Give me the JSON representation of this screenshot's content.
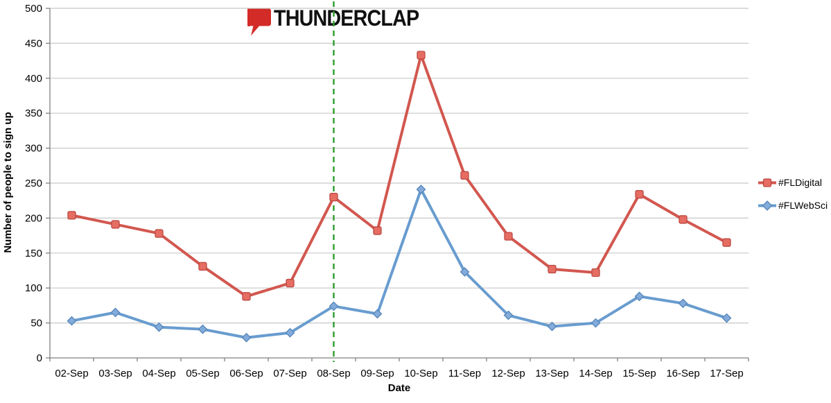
{
  "logo": {
    "text": "THUNDERCLAP",
    "icon_color": "#D32B27",
    "text_color": "#111111"
  },
  "chart_data": {
    "type": "line",
    "xlabel": "Date",
    "ylabel": "Number of people to sign up",
    "ylim": [
      0,
      500
    ],
    "ytick_step": 50,
    "grid": "horizontal",
    "legend_position": "right",
    "categories": [
      "02-Sep",
      "03-Sep",
      "04-Sep",
      "05-Sep",
      "06-Sep",
      "07-Sep",
      "08-Sep",
      "09-Sep",
      "10-Sep",
      "11-Sep",
      "12-Sep",
      "13-Sep",
      "14-Sep",
      "15-Sep",
      "16-Sep",
      "17-Sep"
    ],
    "series": [
      {
        "name": "#FLDigital",
        "marker": "square",
        "color": "#D2574F",
        "marker_fill": "#E66D63",
        "marker_stroke": "#BB4941",
        "values": [
          204,
          191,
          178,
          131,
          88,
          107,
          230,
          182,
          433,
          261,
          174,
          127,
          122,
          234,
          198,
          165
        ]
      },
      {
        "name": "#FLWebSci",
        "marker": "diamond",
        "color": "#689CCF",
        "marker_fill": "#82ABDB",
        "marker_stroke": "#5585B8",
        "values": [
          53,
          65,
          44,
          41,
          29,
          36,
          74,
          63,
          241,
          123,
          61,
          45,
          50,
          88,
          78,
          57
        ]
      }
    ],
    "annotation": {
      "type": "vline",
      "category": "08-Sep",
      "style": "dashed",
      "color": "#2E9B2E"
    }
  },
  "colors": {
    "gridline": "#C8C8C8",
    "axis": "#7F7F7F",
    "tick_text": "#000000"
  }
}
